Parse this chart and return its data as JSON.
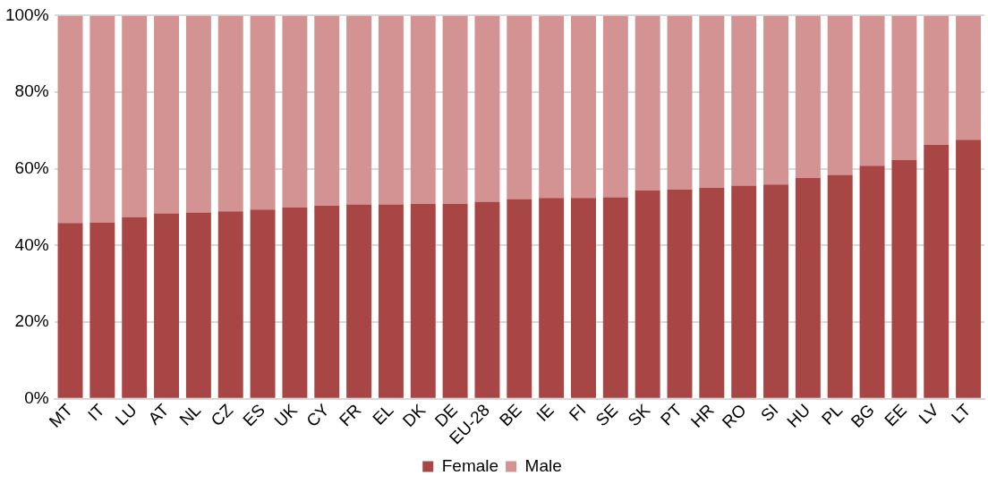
{
  "chart_data": {
    "type": "bar",
    "stacked": true,
    "categories": [
      "MT",
      "IT",
      "LU",
      "AT",
      "NL",
      "CZ",
      "ES",
      "UK",
      "CY",
      "FR",
      "EL",
      "DK",
      "DE",
      "EU-28",
      "BE",
      "IE",
      "FI",
      "SE",
      "SK",
      "PT",
      "HR",
      "RO",
      "SI",
      "HU",
      "PL",
      "BG",
      "EE",
      "LV",
      "LT"
    ],
    "series": [
      {
        "name": "Female",
        "color": "#a84646",
        "values": [
          45.9,
          46,
          47.4,
          48.4,
          48.6,
          48.9,
          49.4,
          49.9,
          50.4,
          50.7,
          50.7,
          50.9,
          50.9,
          51.4,
          52.1,
          52.4,
          52.4,
          52.6,
          54.4,
          54.6,
          55.1,
          55.6,
          55.9,
          57.6,
          58.4,
          60.8,
          62.3,
          66.3,
          67.6
        ]
      },
      {
        "name": "Male",
        "color": "#d39393",
        "values": [
          54.1,
          54,
          52.6,
          51.6,
          51.4,
          51.1,
          50.6,
          50.1,
          49.6,
          49.3,
          49.3,
          49.1,
          49.1,
          48.6,
          47.9,
          47.6,
          47.6,
          47.4,
          45.6,
          45.4,
          44.9,
          44.4,
          44.1,
          42.4,
          41.6,
          39.2,
          37.7,
          33.7,
          32.4
        ]
      }
    ],
    "ylim": [
      0,
      100
    ],
    "yticks": [
      {
        "value": 0,
        "label": "0%"
      },
      {
        "value": 20,
        "label": "20%"
      },
      {
        "value": 40,
        "label": "40%"
      },
      {
        "value": 60,
        "label": "60%"
      },
      {
        "value": 80,
        "label": "80%"
      },
      {
        "value": 100,
        "label": "100%"
      }
    ],
    "grid": "y",
    "legend": "bottom"
  }
}
